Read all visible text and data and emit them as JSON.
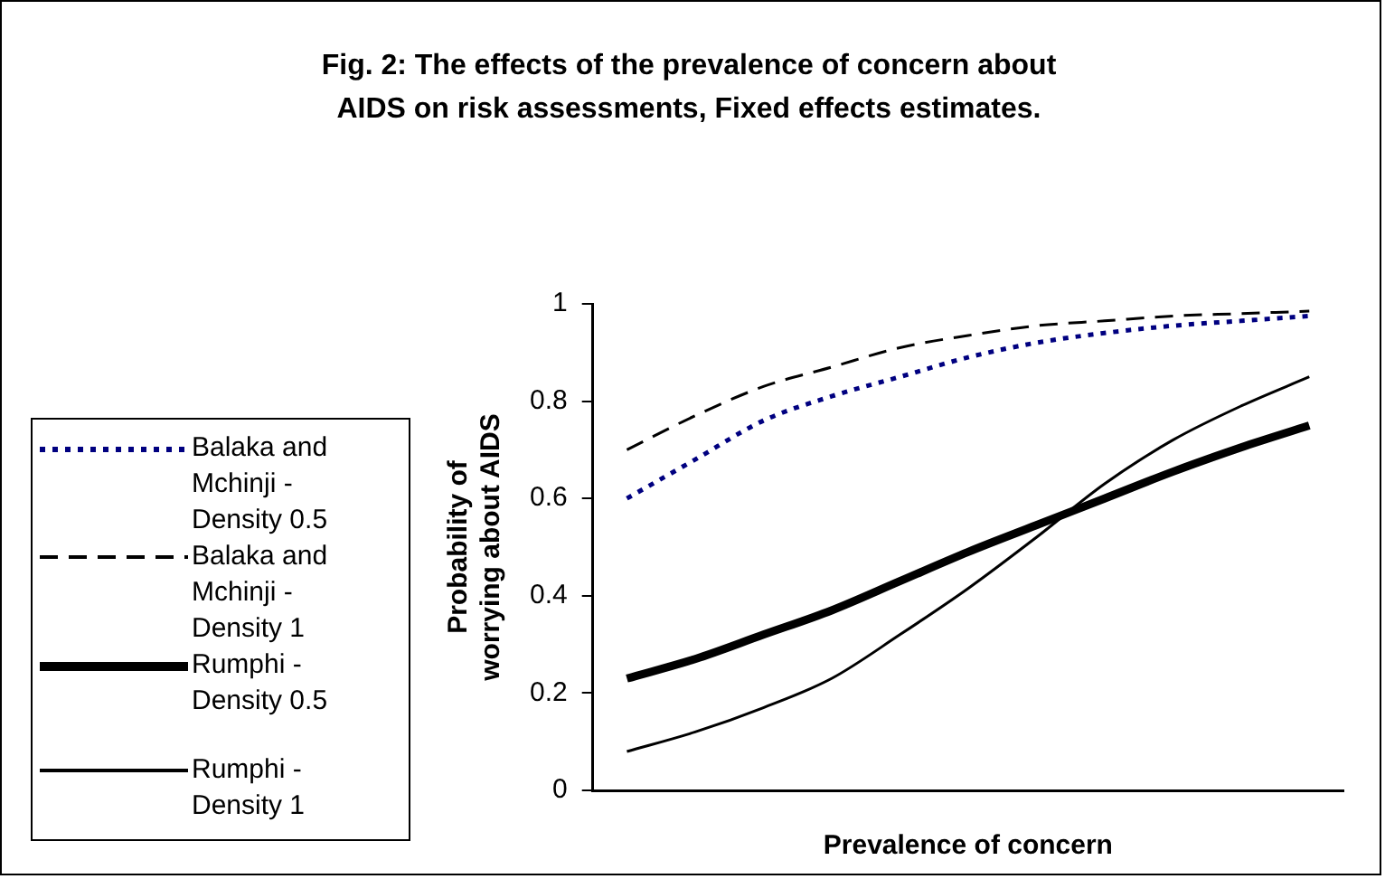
{
  "chart_data": {
    "type": "line",
    "title": "Fig. 2: The effects of the prevalence of concern about AIDS on risk assessments, Fixed effects estimates.",
    "xlabel": "Prevalence of concern",
    "ylabel": "Probability of worrying about AIDS",
    "categories": [
      null,
      null,
      null,
      null,
      null,
      null,
      null,
      null,
      null,
      null,
      null
    ],
    "series": [
      {
        "name": "Balaka and Mchinji - Density 0.5",
        "color": "#000080",
        "line_style": "dotted",
        "values": [
          0.6,
          0.68,
          0.76,
          0.81,
          0.85,
          0.89,
          0.92,
          0.94,
          0.955,
          0.965,
          0.975
        ]
      },
      {
        "name": "Balaka and Mchinji - Density 1",
        "color": "#000000",
        "line_style": "dashed",
        "values": [
          0.7,
          0.77,
          0.83,
          0.87,
          0.91,
          0.935,
          0.955,
          0.965,
          0.975,
          0.98,
          0.985
        ]
      },
      {
        "name": "Rumphi - Density 0.5",
        "color": "#000000",
        "line_style": "solid",
        "values": [
          0.23,
          0.27,
          0.32,
          0.37,
          0.43,
          0.49,
          0.545,
          0.6,
          0.655,
          0.705,
          0.75
        ]
      },
      {
        "name": "Rumphi - Density 1",
        "color": "#000000",
        "line_style": "solid",
        "values": [
          0.08,
          0.12,
          0.17,
          0.23,
          0.32,
          0.415,
          0.52,
          0.63,
          0.72,
          0.79,
          0.85
        ]
      }
    ],
    "ylim": [
      0,
      1
    ],
    "yticks": [
      0,
      0.2,
      0.4,
      0.6,
      0.8,
      1
    ],
    "grid": false,
    "legend": "left",
    "tick_labels": "y",
    "marker": "none"
  }
}
